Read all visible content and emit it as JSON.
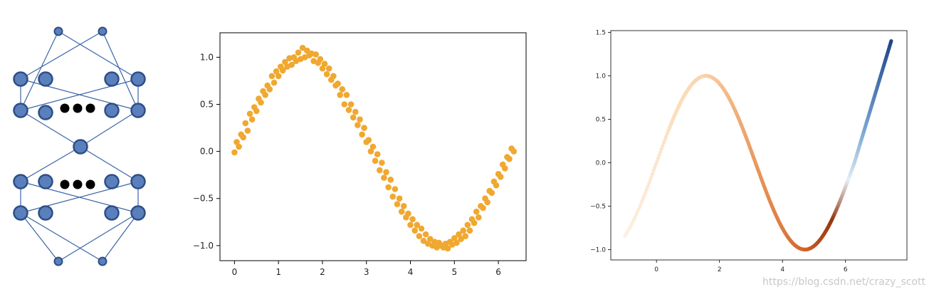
{
  "colors": {
    "node_fill": "#5b7fbc",
    "node_stroke": "#2d4f86",
    "edge": "#3a64a8",
    "dots": "#000000",
    "scatter": "#f0a830",
    "axes": "#000000"
  },
  "diagram": {
    "icons": {
      "node": "circle-node-icon",
      "ellipsis": "ellipsis-dots-icon"
    }
  },
  "chart_data": [
    {
      "type": "scatter",
      "title": "",
      "xlabel": "",
      "ylabel": "",
      "xlim": [
        -0.33,
        6.63
      ],
      "ylim": [
        -1.16,
        1.26
      ],
      "xticks": [
        0,
        1,
        2,
        3,
        4,
        5,
        6
      ],
      "yticks": [
        -1.0,
        -0.5,
        0.0,
        0.5,
        1.0
      ],
      "xtick_labels": [
        "0",
        "1",
        "2",
        "3",
        "4",
        "5",
        "6"
      ],
      "ytick_labels": [
        "−1.0",
        "−0.5",
        "0.0",
        "0.5",
        "1.0"
      ],
      "grid": false,
      "series": [
        {
          "x": [
            0.0,
            0.05,
            0.1,
            0.15,
            0.2,
            0.25,
            0.3,
            0.35,
            0.4,
            0.45,
            0.5,
            0.55,
            0.6,
            0.65,
            0.7,
            0.75,
            0.8,
            0.85,
            0.9,
            0.95,
            1.0,
            1.05,
            1.1,
            1.15,
            1.2,
            1.25,
            1.3,
            1.35,
            1.4,
            1.45,
            1.5,
            1.55,
            1.6,
            1.65,
            1.7,
            1.75,
            1.8,
            1.85,
            1.9,
            1.95,
            2.0,
            2.05,
            2.1,
            2.15,
            2.2,
            2.25,
            2.3,
            2.35,
            2.4,
            2.45,
            2.5,
            2.55,
            2.6,
            2.65,
            2.7,
            2.75,
            2.8,
            2.85,
            2.9,
            2.95,
            3.0,
            3.05,
            3.1,
            3.15,
            3.2,
            3.25,
            3.3,
            3.35,
            3.4,
            3.45,
            3.5,
            3.55,
            3.6,
            3.65,
            3.7,
            3.75,
            3.8,
            3.85,
            3.9,
            3.95,
            4.0,
            4.05,
            4.1,
            4.15,
            4.2,
            4.25,
            4.3,
            4.35,
            4.4,
            4.45,
            4.5,
            4.55,
            4.6,
            4.65,
            4.7,
            4.75,
            4.8,
            4.85,
            4.9,
            4.95,
            5.0,
            5.05,
            5.1,
            5.15,
            5.2,
            5.25,
            5.3,
            5.35,
            5.4,
            5.45,
            5.5,
            5.55,
            5.6,
            5.65,
            5.7,
            5.75,
            5.8,
            5.85,
            5.9,
            5.95,
            6.0,
            6.05,
            6.1,
            6.15,
            6.2,
            6.25,
            6.3,
            6.35
          ],
          "y": [
            -0.01,
            0.1,
            0.05,
            0.18,
            0.15,
            0.3,
            0.22,
            0.4,
            0.34,
            0.47,
            0.43,
            0.56,
            0.52,
            0.64,
            0.6,
            0.7,
            0.66,
            0.8,
            0.73,
            0.85,
            0.8,
            0.9,
            0.86,
            0.95,
            0.9,
            0.99,
            0.92,
            1.0,
            0.96,
            1.05,
            0.98,
            1.1,
            1.0,
            1.07,
            1.02,
            1.04,
            0.96,
            1.03,
            0.94,
            0.98,
            0.88,
            0.93,
            0.82,
            0.88,
            0.76,
            0.8,
            0.7,
            0.72,
            0.6,
            0.66,
            0.5,
            0.6,
            0.44,
            0.5,
            0.36,
            0.42,
            0.28,
            0.34,
            0.18,
            0.25,
            0.1,
            0.12,
            0.0,
            0.05,
            -0.1,
            -0.03,
            -0.2,
            -0.12,
            -0.28,
            -0.22,
            -0.38,
            -0.3,
            -0.48,
            -0.4,
            -0.56,
            -0.5,
            -0.64,
            -0.58,
            -0.7,
            -0.66,
            -0.78,
            -0.72,
            -0.84,
            -0.78,
            -0.9,
            -0.82,
            -0.95,
            -0.88,
            -0.98,
            -0.93,
            -1.0,
            -0.96,
            -1.02,
            -0.97,
            -1.0,
            -1.02,
            -0.98,
            -1.03,
            -0.96,
            -0.99,
            -0.92,
            -0.97,
            -0.88,
            -0.93,
            -0.84,
            -0.9,
            -0.78,
            -0.84,
            -0.72,
            -0.76,
            -0.64,
            -0.7,
            -0.58,
            -0.6,
            -0.5,
            -0.54,
            -0.42,
            -0.44,
            -0.32,
            -0.36,
            -0.24,
            -0.27,
            -0.14,
            -0.18,
            -0.06,
            -0.08,
            0.03,
            0.0
          ]
        }
      ]
    },
    {
      "type": "scatter",
      "title": "",
      "xlabel": "",
      "ylabel": "",
      "xlim": [
        -1.45,
        7.95
      ],
      "ylim": [
        -1.12,
        1.52
      ],
      "xticks": [
        0,
        2,
        4,
        6
      ],
      "yticks": [
        -1.0,
        -0.5,
        0.0,
        0.5,
        1.0,
        1.5
      ],
      "xtick_labels": [
        "0",
        "2",
        "4",
        "6"
      ],
      "ytick_labels": [
        "−1.0",
        "−0.5",
        "0.0",
        "0.5",
        "1.0",
        "1.5"
      ],
      "grid": false,
      "curve": "y = sin(x) for x in [-1, 6.28], then rising line to (7.45, 1.4)",
      "colormap": "orange-white-blue (PuOr-like), colored by position along curve",
      "series": [
        {
          "x_range": [
            -1.0,
            7.45
          ],
          "y_end": 1.4
        }
      ]
    }
  ],
  "watermark": "https://blog.csdn.net/crazy_scott"
}
